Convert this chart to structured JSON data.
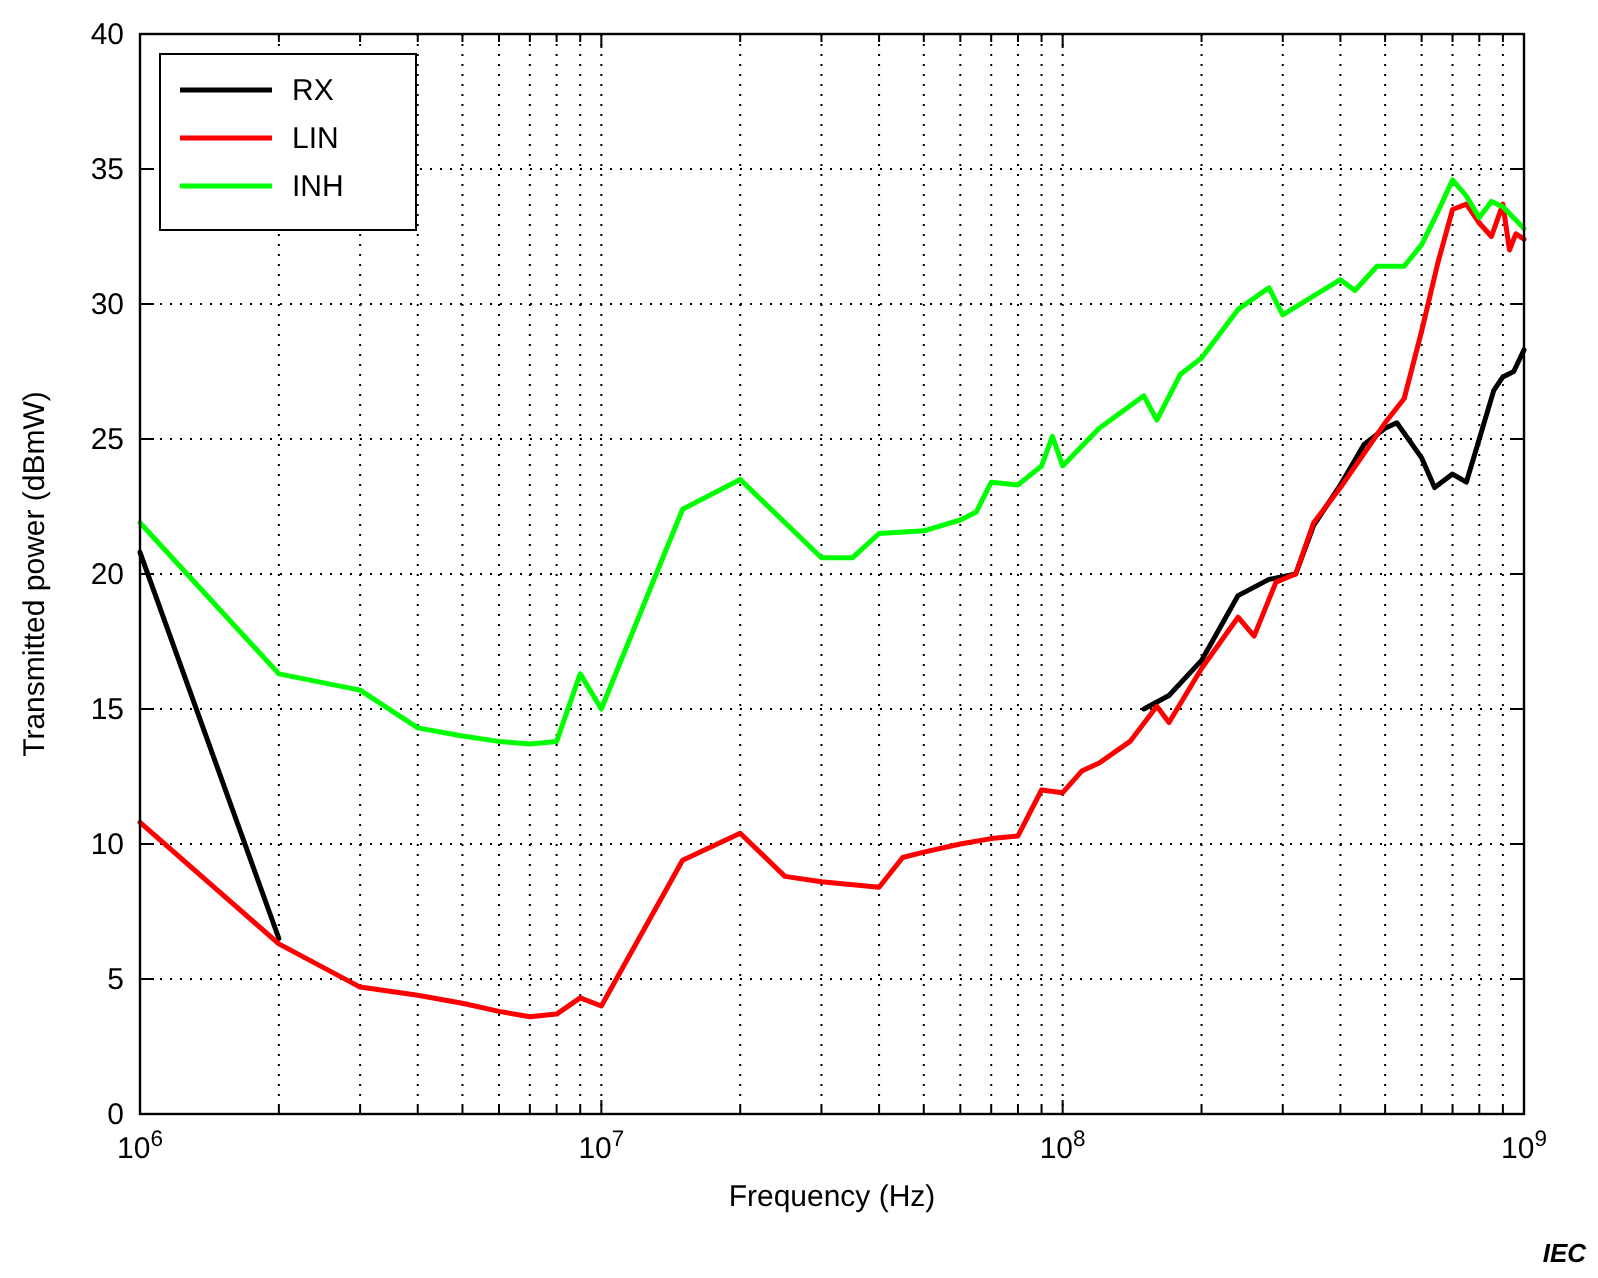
{
  "chart_data": {
    "type": "line",
    "xlabel": "Frequency (Hz)",
    "ylabel": "Transmitted power (dBmW)",
    "log": "x",
    "grid": true,
    "legend": "top left",
    "line_style": "solid",
    "marker": "none",
    "xlim": [
      1000000,
      1000000000
    ],
    "ylim": [
      0,
      40
    ],
    "yticks": [
      0,
      5,
      10,
      15,
      20,
      25,
      30,
      35,
      40
    ],
    "xticks": [
      {
        "value": 1000000,
        "label": "10$^{6}$"
      },
      {
        "value": 2000000,
        "label": null
      },
      {
        "value": 3000000,
        "label": null
      },
      {
        "value": 4000000,
        "label": null
      },
      {
        "value": 5000000,
        "label": null
      },
      {
        "value": 6000000,
        "label": null
      },
      {
        "value": 7000000,
        "label": null
      },
      {
        "value": 8000000,
        "label": null
      },
      {
        "value": 9000000,
        "label": null
      },
      {
        "value": 10000000,
        "label": "10$^{7}$"
      },
      {
        "value": 20000000,
        "label": null
      },
      {
        "value": 30000000,
        "label": null
      },
      {
        "value": 40000000,
        "label": null
      },
      {
        "value": 50000000,
        "label": null
      },
      {
        "value": 60000000,
        "label": null
      },
      {
        "value": 70000000,
        "label": null
      },
      {
        "value": 80000000,
        "label": null
      },
      {
        "value": 90000000,
        "label": null
      },
      {
        "value": 100000000,
        "label": "10$^{8}$"
      },
      {
        "value": 200000000,
        "label": null
      },
      {
        "value": 300000000,
        "label": null
      },
      {
        "value": 400000000,
        "label": null
      },
      {
        "value": 500000000,
        "label": null
      },
      {
        "value": 600000000,
        "label": null
      },
      {
        "value": 700000000,
        "label": null
      },
      {
        "value": 800000000,
        "label": null
      },
      {
        "value": 900000000,
        "label": null
      },
      {
        "value": 1000000000,
        "label": "10$^{9}$"
      }
    ],
    "annotations": [
      "IEC"
    ],
    "series": [
      {
        "name": "RX",
        "color": "#000000",
        "x": [
          1000000,
          2000000,
          5000000,
          150000000,
          170000000,
          200000000,
          240000000,
          280000000,
          320000000,
          350000000,
          400000000,
          450000000,
          500000000,
          530000000,
          600000000,
          640000000,
          700000000,
          750000000,
          800000000,
          860000000,
          900000000,
          950000000,
          1000000000
        ],
        "values": [
          20.8,
          6.5,
          null,
          15.0,
          15.5,
          16.8,
          19.2,
          19.8,
          20.0,
          21.8,
          23.3,
          24.8,
          25.4,
          25.6,
          24.3,
          23.2,
          23.7,
          23.4,
          25.0,
          26.8,
          27.3,
          27.5,
          28.3
        ]
      },
      {
        "name": "LIN",
        "color": "#ff0000",
        "x": [
          1000000,
          2000000,
          3000000,
          4000000,
          5000000,
          6000000,
          7000000,
          8000000,
          9000000,
          10000000,
          15000000,
          20000000,
          25000000,
          30000000,
          40000000,
          45000000,
          50000000,
          60000000,
          70000000,
          80000000,
          90000000,
          100000000,
          110000000,
          120000000,
          140000000,
          160000000,
          170000000,
          200000000,
          240000000,
          260000000,
          290000000,
          320000000,
          350000000,
          400000000,
          460000000,
          500000000,
          550000000,
          600000000,
          650000000,
          700000000,
          750000000,
          800000000,
          850000000,
          900000000,
          930000000,
          960000000,
          1000000000
        ],
        "values": [
          10.8,
          6.3,
          4.7,
          4.4,
          4.1,
          3.8,
          3.6,
          3.7,
          4.3,
          4.0,
          9.4,
          10.4,
          8.8,
          8.6,
          8.4,
          9.5,
          9.7,
          10.0,
          10.2,
          10.3,
          12.0,
          11.9,
          12.7,
          13.0,
          13.8,
          15.1,
          14.5,
          16.5,
          18.4,
          17.7,
          19.7,
          20.0,
          21.9,
          23.2,
          24.7,
          25.6,
          26.5,
          29.0,
          31.5,
          33.5,
          33.7,
          33.0,
          32.5,
          33.7,
          32.0,
          32.6,
          32.4
        ]
      },
      {
        "name": "INH",
        "color": "#00ff00",
        "x": [
          1000000,
          2000000,
          3000000,
          4000000,
          5000000,
          6000000,
          7000000,
          8000000,
          9000000,
          10000000,
          15000000,
          20000000,
          30000000,
          35000000,
          40000000,
          50000000,
          60000000,
          65000000,
          70000000,
          80000000,
          90000000,
          95000000,
          100000000,
          120000000,
          150000000,
          160000000,
          180000000,
          200000000,
          240000000,
          280000000,
          300000000,
          350000000,
          400000000,
          430000000,
          480000000,
          550000000,
          600000000,
          650000000,
          700000000,
          750000000,
          800000000,
          850000000,
          900000000,
          1000000000
        ],
        "values": [
          21.9,
          16.3,
          15.7,
          14.3,
          14.0,
          13.8,
          13.7,
          13.8,
          16.3,
          15.0,
          22.4,
          23.5,
          20.6,
          20.6,
          21.5,
          21.6,
          22.0,
          22.3,
          23.4,
          23.3,
          24.0,
          25.1,
          24.0,
          25.4,
          26.6,
          25.7,
          27.4,
          28.0,
          29.8,
          30.6,
          29.6,
          30.3,
          30.9,
          30.5,
          31.4,
          31.4,
          32.2,
          33.4,
          34.6,
          34.0,
          33.2,
          33.8,
          33.6,
          32.8
        ]
      }
    ]
  }
}
